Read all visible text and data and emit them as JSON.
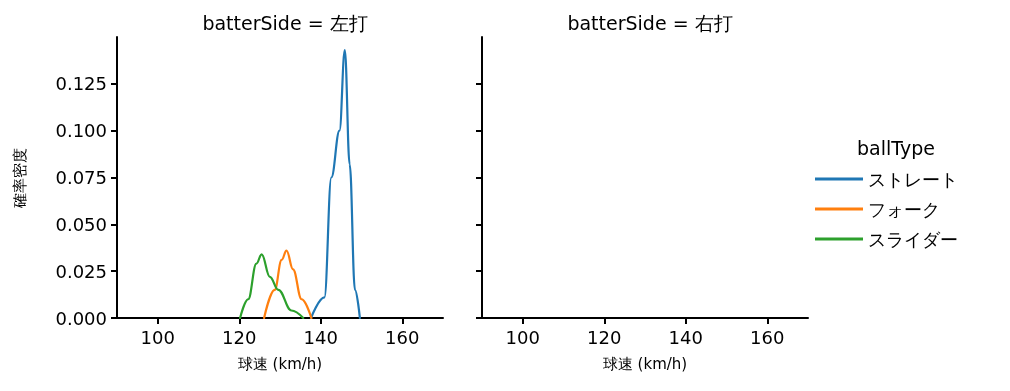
{
  "chart_data": [
    {
      "type": "line",
      "title": "batterSide = 左打",
      "xlabel": "球速 (km/h)",
      "ylabel": "確率密度",
      "legend_title": "ballType",
      "legend": "right",
      "xlim": [
        90,
        170
      ],
      "xticks": [
        100,
        120,
        140,
        160
      ],
      "ylim": [
        0,
        0.15
      ],
      "yticks": [
        {
          "value": 0,
          "label": "0.000"
        },
        {
          "value": 0.025,
          "label": "0.025"
        },
        {
          "value": 0.05,
          "label": "0.050"
        },
        {
          "value": 0.075,
          "label": "0.075"
        },
        {
          "value": 0.1,
          "label": "0.100"
        },
        {
          "value": 0.125,
          "label": "0.125"
        }
      ],
      "grid": false,
      "marker": "none",
      "line_style": "solid",
      "series": [
        {
          "name": "ストレート",
          "color": "#1f77b4",
          "x": [
            137.6,
            140.9,
            142.6,
            144.6,
            145.9,
            147.1,
            148.4,
            149.6
          ],
          "values": [
            0,
            0.011,
            0.075,
            0.1,
            0.143,
            0.082,
            0.015,
            0
          ]
        },
        {
          "name": "フォーク",
          "color": "#ff7f0e",
          "x": [
            126.1,
            128.7,
            130.4,
            131.6,
            133.2,
            135.3,
            137.7
          ],
          "values": [
            0,
            0.015,
            0.031,
            0.036,
            0.026,
            0.01,
            0
          ]
        },
        {
          "name": "スライダー",
          "color": "#2ca02c",
          "x": [
            120.2,
            122.2,
            124.2,
            125.5,
            127.5,
            129.6,
            132.8,
            135.7
          ],
          "values": [
            0,
            0.01,
            0.029,
            0.034,
            0.022,
            0.015,
            0.004,
            0
          ]
        }
      ]
    },
    {
      "type": "line",
      "title": "batterSide = 右打",
      "xlabel": "球速 (km/h)",
      "xlim": [
        90,
        170
      ],
      "xticks": [
        100,
        120,
        140,
        160
      ],
      "ylim": [
        0,
        0.15
      ],
      "yticks": [
        {
          "value": 0,
          "label": null
        },
        {
          "value": 0.025,
          "label": null
        },
        {
          "value": 0.05,
          "label": null
        },
        {
          "value": 0.075,
          "label": null
        },
        {
          "value": 0.1,
          "label": null
        },
        {
          "value": 0.125,
          "label": null
        }
      ],
      "grid": false,
      "tick_labels": "x"
    }
  ]
}
